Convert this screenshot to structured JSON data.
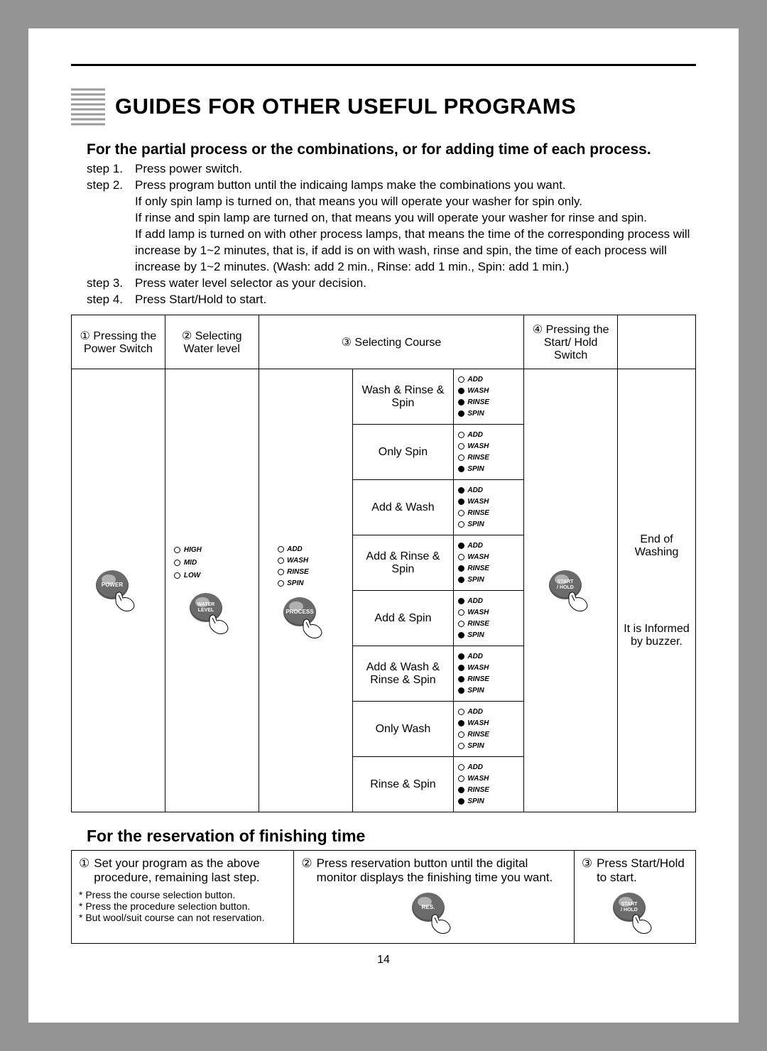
{
  "page_number": "14",
  "title": "GUIDES FOR OTHER USEFUL PROGRAMS",
  "section1": {
    "heading": "For the partial process or the combinations, or for adding time of each process.",
    "steps": [
      {
        "label": "step 1.",
        "text": "Press power switch."
      },
      {
        "label": "step 2.",
        "text": "Press program button until the indicaing lamps make the combinations you want.\nIf only spin lamp is turned on, that means you will operate your washer for spin only.\nIf rinse and spin lamp are turned on, that means you will operate your washer for rinse and spin.\nIf add lamp is turned on with other process lamps, that means the time of the corresponding process will increase by 1~2 minutes, that is, if add is on with wash, rinse and spin, the time of each process will increase by 1~2 minutes. (Wash: add 2 min., Rinse: add 1 min., Spin: add 1 min.)"
      },
      {
        "label": "step 3.",
        "text": "Press water level selector as your decision."
      },
      {
        "label": "step 4.",
        "text": "Press Start/Hold to start."
      }
    ]
  },
  "table": {
    "headers": {
      "c1": "① Pressing the Power Switch",
      "c2": "② Selecting Water level",
      "c3": "③ Selecting Course",
      "c4": "④ Pressing the Start/ Hold Switch",
      "c5": ""
    },
    "water_levels": [
      "HIGH",
      "MID",
      "LOW"
    ],
    "process_initial": {
      "add": false,
      "wash": false,
      "rinse": false,
      "spin": false
    },
    "lamp_labels": {
      "add": "ADD",
      "wash": "WASH",
      "rinse": "RINSE",
      "spin": "SPIN"
    },
    "buttons": {
      "power": "POWER",
      "water": "WATER LEVEL",
      "process": "PROCESS",
      "start": "START / HOLD",
      "res": "RES."
    },
    "courses": [
      {
        "name": "Wash & Rinse & Spin",
        "add": false,
        "wash": true,
        "rinse": true,
        "spin": true
      },
      {
        "name": "Only Spin",
        "add": false,
        "wash": false,
        "rinse": false,
        "spin": true
      },
      {
        "name": "Add & Wash",
        "add": true,
        "wash": true,
        "rinse": false,
        "spin": false
      },
      {
        "name": "Add & Rinse & Spin",
        "add": true,
        "wash": false,
        "rinse": true,
        "spin": true
      },
      {
        "name": "Add & Spin",
        "add": true,
        "wash": false,
        "rinse": false,
        "spin": true
      },
      {
        "name": "Add & Wash & Rinse & Spin",
        "add": true,
        "wash": true,
        "rinse": true,
        "spin": true
      },
      {
        "name": "Only Wash",
        "add": false,
        "wash": true,
        "rinse": false,
        "spin": false
      },
      {
        "name": "Rinse & Spin",
        "add": false,
        "wash": false,
        "rinse": true,
        "spin": true
      }
    ],
    "end_text_1": "End of Washing",
    "end_text_2": "It is Informed by buzzer."
  },
  "section2": {
    "heading": "For the reservation of finishing time",
    "cells": [
      {
        "num": "①",
        "text": "Set your program as the above procedure, remaining last step.",
        "bullets": [
          "Press the course selection button.",
          "Press the procedure selection button.",
          "But wool/suit course can not reservation."
        ]
      },
      {
        "num": "②",
        "text": "Press reservation button until the digital monitor displays the finishing time you want.",
        "button": "res"
      },
      {
        "num": "③",
        "text": "Press Start/Hold to start.",
        "button": "start"
      }
    ]
  },
  "colors": {
    "button_fill": "#6b6b6b",
    "button_hilite": "#cfcfcf",
    "button_shadow": "#2b2b2b",
    "stripe": "#bfbfbf"
  }
}
